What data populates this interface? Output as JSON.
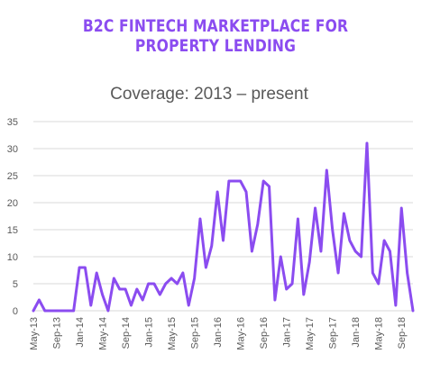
{
  "header": {
    "title": "B2C FINTECH MARKETPLACE FOR PROPERTY LENDING"
  },
  "colors": {
    "accent": "#8b4cf0",
    "text": "#595959",
    "grid": "#d9d9d9"
  },
  "chart_data": {
    "type": "line",
    "title": "Coverage: 2013 – present",
    "xlabel": "",
    "ylabel": "",
    "ylim": [
      0,
      35
    ],
    "y_ticks": [
      0,
      5,
      10,
      15,
      20,
      25,
      30,
      35
    ],
    "x_tick_labels": [
      "May-13",
      "Sep-13",
      "Jan-14",
      "May-14",
      "Sep-14",
      "Jan-15",
      "May-15",
      "Sep-15",
      "Jan-16",
      "May-16",
      "Sep-16",
      "Jan-17",
      "May-17",
      "Sep-17",
      "Jan-18",
      "May-18",
      "Sep-18"
    ],
    "grid": true,
    "legend": "none",
    "series": [
      {
        "name": "",
        "values": [
          0,
          2,
          0,
          0,
          0,
          0,
          0,
          0,
          8,
          8,
          1,
          7,
          3,
          0,
          6,
          4,
          4,
          1,
          4,
          2,
          5,
          5,
          3,
          5,
          6,
          5,
          7,
          1,
          6,
          17,
          8,
          12,
          22,
          13,
          24,
          24,
          24,
          22,
          11,
          16,
          24,
          23,
          2,
          10,
          4,
          5,
          17,
          3,
          9,
          19,
          11,
          26,
          15,
          7,
          18,
          13,
          11,
          10,
          31,
          7,
          5,
          13,
          11,
          1,
          19,
          7,
          0
        ]
      }
    ]
  }
}
